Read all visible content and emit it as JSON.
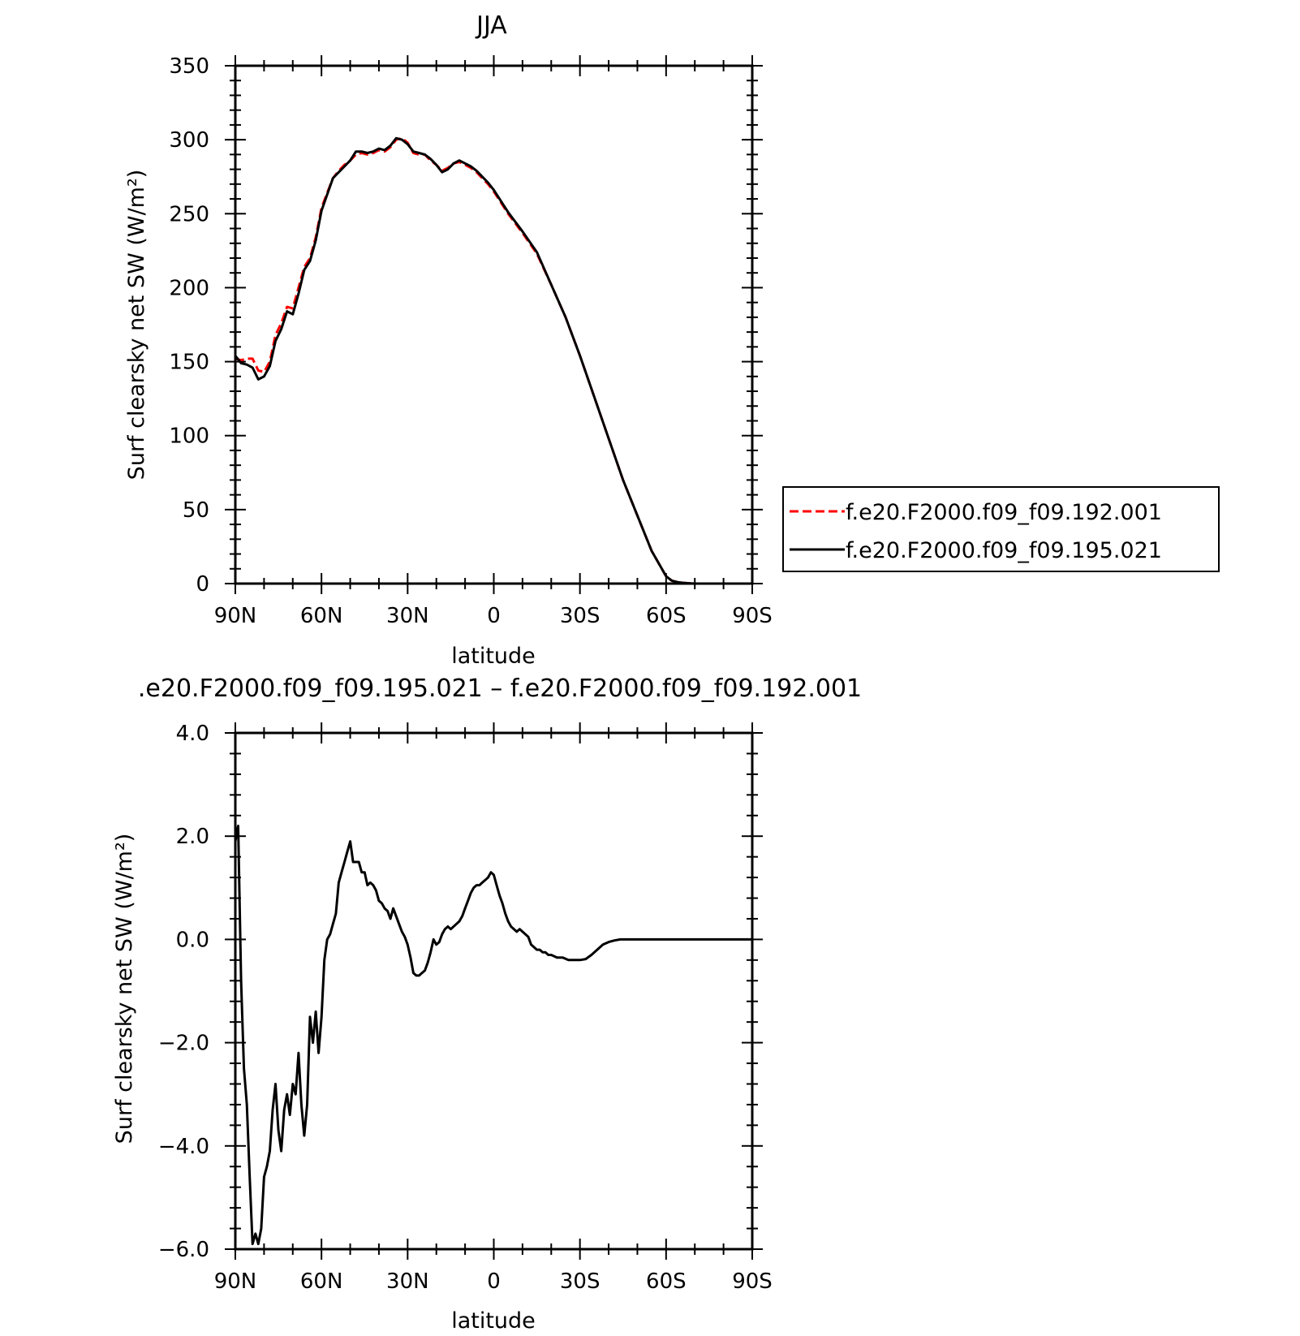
{
  "chart_data": [
    {
      "type": "line",
      "title": "JJA",
      "xlabel": "latitude",
      "ylabel": "Surf clearsky net SW (W/m²)",
      "x_tick_labels": [
        "90N",
        "60N",
        "30N",
        "0",
        "30S",
        "60S",
        "90S"
      ],
      "x_ticks": [
        90,
        60,
        30,
        0,
        -30,
        -60,
        -90
      ],
      "xlim": [
        90,
        -90
      ],
      "ylim": [
        0,
        350
      ],
      "y_ticks": [
        0,
        50,
        100,
        150,
        200,
        250,
        300,
        350
      ],
      "y_tick_labels": [
        "0",
        "50",
        "100",
        "150",
        "200",
        "250",
        "300",
        "350"
      ],
      "grid": false,
      "legend": "outside-right",
      "x": [
        90,
        88,
        86,
        84,
        82,
        80,
        78,
        76,
        74,
        72,
        70,
        68,
        66,
        64,
        62,
        60,
        58,
        56,
        54,
        52,
        50,
        48,
        46,
        44,
        42,
        40,
        38,
        36,
        34,
        32,
        30,
        28,
        26,
        24,
        22,
        20,
        18,
        16,
        14,
        12,
        10,
        8,
        6,
        4,
        2,
        0,
        -5,
        -10,
        -15,
        -20,
        -25,
        -30,
        -35,
        -40,
        -45,
        -50,
        -55,
        -60,
        -62,
        -64,
        -66,
        -68,
        -70,
        -75,
        -80,
        -85,
        -90
      ],
      "series": [
        {
          "name": "f.e20.F2000.f09_f09.192.001",
          "color": "#ff0000",
          "style": "dashed",
          "values": [
            152,
            151,
            152,
            152,
            144,
            143,
            150,
            168,
            176,
            187,
            186,
            200,
            214,
            220,
            234,
            254,
            264,
            274,
            279,
            283,
            286,
            290,
            291,
            290,
            291,
            293,
            292,
            295,
            300,
            301,
            298,
            291,
            290,
            290,
            286,
            283,
            279,
            281,
            284,
            285,
            283,
            281,
            278,
            274,
            270,
            265,
            250,
            237,
            223,
            202,
            180,
            154,
            126,
            98,
            70,
            46,
            22,
            5,
            2,
            1,
            0.5,
            0.2,
            0,
            0,
            0,
            0,
            0
          ]
        },
        {
          "name": "f.e20.F2000.f09_f09.195.021",
          "color": "#000000",
          "style": "solid",
          "values": [
            154,
            149,
            148,
            146,
            138,
            140,
            147,
            164,
            172,
            184,
            182,
            196,
            212,
            218,
            232,
            252,
            263,
            274,
            278,
            282,
            286,
            292,
            292,
            291,
            292,
            294,
            293,
            296,
            301,
            300,
            297,
            292,
            291,
            290,
            287,
            283,
            278,
            280,
            284,
            286,
            284,
            282,
            279,
            275,
            271,
            266,
            251,
            238,
            224,
            202,
            180,
            154,
            126,
            98,
            70,
            46,
            22,
            5,
            2,
            1,
            0.5,
            0.2,
            0,
            0,
            0,
            0,
            0
          ]
        }
      ]
    },
    {
      "type": "line",
      "title": ".e20.F2000.f09_f09.195.021 – f.e20.F2000.f09_f09.192.001",
      "xlabel": "latitude",
      "ylabel": "Surf clearsky net SW (W/m²)",
      "x_tick_labels": [
        "90N",
        "60N",
        "30N",
        "0",
        "30S",
        "60S",
        "90S"
      ],
      "x_ticks": [
        90,
        60,
        30,
        0,
        -30,
        -60,
        -90
      ],
      "xlim": [
        90,
        -90
      ],
      "ylim": [
        -6,
        4
      ],
      "y_ticks": [
        -6,
        -4,
        -2,
        0,
        2,
        4
      ],
      "y_tick_labels": [
        "−6.0",
        "−4.0",
        "−2.0",
        "0.0",
        "2.0",
        "4.0"
      ],
      "grid": false,
      "x": [
        90,
        89,
        88,
        87,
        86,
        85,
        84,
        83,
        82,
        81,
        80,
        79,
        78,
        77,
        76,
        75,
        74,
        73,
        72,
        71,
        70,
        69,
        68,
        67,
        66,
        65,
        64,
        63,
        62,
        61,
        60,
        59,
        58,
        57,
        56,
        55,
        54,
        53,
        52,
        51,
        50,
        49,
        48,
        47,
        46,
        45,
        44,
        43,
        42,
        41,
        40,
        39,
        38,
        37,
        36,
        35,
        34,
        33,
        32,
        31,
        30,
        29,
        28,
        27,
        26,
        25,
        24,
        23,
        22,
        21,
        20,
        19,
        18,
        17,
        16,
        15,
        14,
        13,
        12,
        11,
        10,
        9,
        8,
        7,
        6,
        5,
        4,
        3,
        2,
        1,
        0,
        -1,
        -2,
        -3,
        -4,
        -5,
        -6,
        -7,
        -8,
        -9,
        -10,
        -11,
        -12,
        -13,
        -14,
        -15,
        -16,
        -17,
        -18,
        -19,
        -20,
        -22,
        -24,
        -26,
        -28,
        -30,
        -32,
        -34,
        -36,
        -38,
        -40,
        -42,
        -44,
        -46,
        -48,
        -50,
        -52,
        -54,
        -56,
        -58,
        -60,
        -62,
        -64,
        -66,
        -68,
        -70,
        -75,
        -80,
        -85,
        -90
      ],
      "values": [
        1.9,
        2.2,
        -0.8,
        -2.5,
        -3.2,
        -4.6,
        -5.9,
        -5.7,
        -5.9,
        -5.6,
        -4.6,
        -4.4,
        -4.1,
        -3.3,
        -2.8,
        -3.7,
        -4.1,
        -3.3,
        -3.0,
        -3.4,
        -2.8,
        -3.0,
        -2.2,
        -3.2,
        -3.8,
        -3.2,
        -1.5,
        -2.0,
        -1.4,
        -2.2,
        -1.5,
        -0.4,
        0.0,
        0.1,
        0.3,
        0.5,
        1.1,
        1.3,
        1.5,
        1.7,
        1.9,
        1.5,
        1.5,
        1.5,
        1.3,
        1.3,
        1.05,
        1.1,
        1.05,
        0.95,
        0.75,
        0.7,
        0.6,
        0.55,
        0.4,
        0.6,
        0.45,
        0.3,
        0.15,
        0.05,
        -0.1,
        -0.35,
        -0.65,
        -0.7,
        -0.7,
        -0.65,
        -0.6,
        -0.45,
        -0.25,
        0.0,
        -0.1,
        -0.05,
        0.1,
        0.2,
        0.25,
        0.2,
        0.25,
        0.3,
        0.35,
        0.45,
        0.6,
        0.75,
        0.9,
        1.0,
        1.05,
        1.05,
        1.1,
        1.15,
        1.2,
        1.3,
        1.25,
        1.05,
        0.85,
        0.7,
        0.5,
        0.35,
        0.25,
        0.2,
        0.15,
        0.2,
        0.15,
        0.1,
        0.05,
        -0.1,
        -0.15,
        -0.2,
        -0.2,
        -0.25,
        -0.25,
        -0.3,
        -0.3,
        -0.35,
        -0.35,
        -0.4,
        -0.4,
        -0.4,
        -0.38,
        -0.3,
        -0.2,
        -0.1,
        -0.05,
        -0.02,
        0,
        0,
        0,
        0,
        0,
        0,
        0,
        0,
        0,
        0,
        0,
        0,
        0,
        0,
        0,
        0,
        0,
        0
      ]
    }
  ]
}
